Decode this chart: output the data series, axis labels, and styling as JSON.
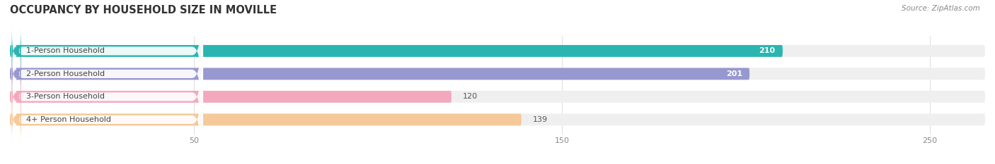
{
  "title": "OCCUPANCY BY HOUSEHOLD SIZE IN MOVILLE",
  "source": "Source: ZipAtlas.com",
  "categories": [
    "1-Person Household",
    "2-Person Household",
    "3-Person Household",
    "4+ Person Household"
  ],
  "values": [
    210,
    201,
    120,
    139
  ],
  "bar_colors": [
    "#2ab5b0",
    "#9898d0",
    "#f4a8be",
    "#f5c99a"
  ],
  "label_accent_colors": [
    "#2ab5b0",
    "#9898d0",
    "#f4a8be",
    "#f5c99a"
  ],
  "bar_bg_color": "#efefef",
  "value_inside": [
    true,
    true,
    false,
    false
  ],
  "xlim": [
    0,
    265
  ],
  "xticks": [
    50,
    150,
    250
  ],
  "title_fontsize": 10.5,
  "label_fontsize": 8,
  "value_fontsize": 8,
  "source_fontsize": 7.5,
  "bar_height": 0.52,
  "figsize": [
    14.06,
    2.33
  ],
  "dpi": 100
}
